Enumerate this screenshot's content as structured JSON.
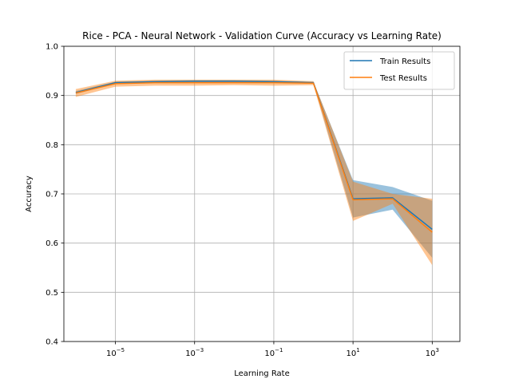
{
  "chart_data": {
    "type": "line",
    "title": "Rice - PCA - Neural Network - Validation Curve (Accuracy vs Learning Rate)",
    "xlabel": "Learning Rate",
    "ylabel": "Accuracy",
    "xscale": "log",
    "xlim": [
      5e-07,
      5000
    ],
    "ylim": [
      0.4,
      1.0
    ],
    "x_ticks": [
      {
        "value": 1e-05,
        "base": "10",
        "exp": "−5"
      },
      {
        "value": 0.001,
        "base": "10",
        "exp": "−3"
      },
      {
        "value": 0.1,
        "base": "10",
        "exp": "−1"
      },
      {
        "value": 10,
        "base": "10",
        "exp": "1"
      },
      {
        "value": 1000,
        "base": "10",
        "exp": "3"
      }
    ],
    "y_ticks": [
      {
        "value": 0.4,
        "label": "0.4"
      },
      {
        "value": 0.5,
        "label": "0.5"
      },
      {
        "value": 0.6,
        "label": "0.6"
      },
      {
        "value": 0.7,
        "label": "0.7"
      },
      {
        "value": 0.8,
        "label": "0.8"
      },
      {
        "value": 0.9,
        "label": "0.9"
      },
      {
        "value": 1.0,
        "label": "1.0"
      }
    ],
    "grid": true,
    "legend_position": "top-right",
    "x": [
      1e-06,
      1e-05,
      0.0001,
      0.001,
      0.01,
      0.1,
      1,
      10,
      100,
      1000
    ],
    "series": [
      {
        "name": "Train Results",
        "color": "#1f77b4",
        "values": [
          0.906,
          0.926,
          0.928,
          0.929,
          0.929,
          0.928,
          0.926,
          0.69,
          0.692,
          0.628
        ],
        "lower": [
          0.903,
          0.924,
          0.926,
          0.927,
          0.927,
          0.926,
          0.924,
          0.652,
          0.668,
          0.57
        ],
        "upper": [
          0.909,
          0.928,
          0.93,
          0.931,
          0.931,
          0.93,
          0.928,
          0.728,
          0.714,
          0.686
        ]
      },
      {
        "name": "Test Results",
        "color": "#ff7f0e",
        "values": [
          0.905,
          0.924,
          0.926,
          0.926,
          0.926,
          0.926,
          0.925,
          0.688,
          0.69,
          0.622
        ],
        "lower": [
          0.897,
          0.918,
          0.92,
          0.92,
          0.921,
          0.92,
          0.921,
          0.645,
          0.68,
          0.555
        ],
        "upper": [
          0.913,
          0.93,
          0.932,
          0.932,
          0.932,
          0.932,
          0.929,
          0.725,
          0.7,
          0.69
        ]
      }
    ]
  }
}
